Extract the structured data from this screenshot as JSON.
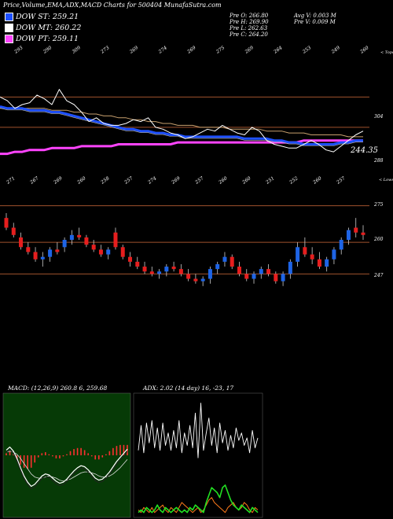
{
  "title": "Price,Volume,EMA,ADX,MACD Charts for 500404 MunafaSutra.com",
  "legend": [
    {
      "label": "DOW ST: 259.21",
      "color": "#1e50ff"
    },
    {
      "label": "DOW MT: 260.22",
      "color": "#ffffff"
    },
    {
      "label": "DOW PT: 259.11",
      "color": "#ff44ff"
    }
  ],
  "info": {
    "prev_open": "Pre  O: 266.80",
    "prev_high": "Pre  H: 269.90",
    "prev_low": "Pre  L: 262.63",
    "prev_close": "Pre  C: 264.20",
    "avg_vol": "Avg V: 0.003 M",
    "prev_vol": "Pre  V: 0.009 M"
  },
  "colors": {
    "up": "#1e64e6",
    "down": "#e61e1e",
    "brown": "#a0522d",
    "bg": "#000000"
  },
  "chart_data": [
    {
      "type": "line",
      "name": "price-ema-panel",
      "top_labels": [
        "293",
        "290",
        "309",
        "273",
        "269",
        "274",
        "269",
        "275",
        "269",
        "264",
        "253",
        "249",
        "260"
      ],
      "bottom_labels": [
        "244.35"
      ],
      "right_labels": [
        "< Tops",
        "304",
        "288"
      ],
      "series": [
        {
          "name": "price",
          "values": [
            304,
            302,
            298,
            300,
            301,
            305,
            303,
            300,
            308,
            302,
            300,
            296,
            291,
            293,
            290,
            289,
            289,
            290,
            292,
            291,
            293,
            288,
            287,
            285,
            284,
            282,
            283,
            285,
            287,
            286,
            289,
            287,
            285,
            284,
            288,
            286,
            281,
            279,
            278,
            277,
            277,
            279,
            281,
            279,
            276,
            275,
            278,
            281,
            284,
            286
          ]
        },
        {
          "name": "ema-short",
          "values": [
            299,
            298,
            298,
            298,
            297,
            297,
            297,
            296,
            296,
            295,
            294,
            293,
            292,
            291,
            290,
            289,
            288,
            287,
            287,
            286,
            286,
            285,
            285,
            284,
            284,
            283,
            283,
            283,
            283,
            283,
            283,
            283,
            283,
            282,
            282,
            282,
            282,
            281,
            281,
            280,
            280,
            279,
            279,
            279,
            279,
            279,
            280,
            280,
            281,
            281
          ]
        },
        {
          "name": "ema-mid",
          "values": [
            298,
            298,
            298,
            298,
            298,
            298,
            298,
            297,
            297,
            297,
            296,
            296,
            295,
            295,
            294,
            294,
            293,
            293,
            292,
            292,
            291,
            291,
            290,
            290,
            289,
            289,
            289,
            288,
            288,
            288,
            288,
            287,
            287,
            287,
            287,
            287,
            286,
            286,
            286,
            285,
            285,
            285,
            284,
            284,
            284,
            284,
            284,
            283,
            283,
            283
          ]
        },
        {
          "name": "ema-long",
          "values": [
            274,
            274,
            275,
            275,
            276,
            276,
            276,
            277,
            277,
            277,
            277,
            278,
            278,
            278,
            278,
            278,
            279,
            279,
            279,
            279,
            279,
            279,
            279,
            279,
            280,
            280,
            280,
            280,
            280,
            280,
            280,
            280,
            280,
            280,
            280,
            280,
            280,
            280,
            280,
            280,
            280,
            281,
            281,
            281,
            281,
            281,
            281,
            281,
            281,
            281
          ]
        }
      ]
    },
    {
      "type": "candlestick",
      "name": "candles-panel",
      "top_labels": [
        "271",
        "267",
        "269",
        "260",
        "258",
        "257",
        "274",
        "269",
        "257",
        "260",
        "260",
        "251",
        "252",
        "260",
        "257"
      ],
      "right_labels": [
        "< Lows",
        "275",
        "260",
        "247"
      ],
      "candles": [
        [
          270,
          272,
          265,
          266
        ],
        [
          266,
          268,
          262,
          263
        ],
        [
          262,
          264,
          257,
          258
        ],
        [
          258,
          260,
          255,
          256
        ],
        [
          256,
          258,
          252,
          253
        ],
        [
          253,
          256,
          250,
          254
        ],
        [
          254,
          258,
          252,
          257
        ],
        [
          257,
          260,
          255,
          256
        ],
        [
          258,
          262,
          256,
          261
        ],
        [
          261,
          265,
          259,
          263
        ],
        [
          263,
          266,
          261,
          262
        ],
        [
          262,
          263,
          258,
          259
        ],
        [
          259,
          261,
          256,
          257
        ],
        [
          257,
          259,
          254,
          255
        ],
        [
          255,
          258,
          253,
          257
        ],
        [
          264,
          266,
          257,
          258
        ],
        [
          258,
          259,
          253,
          254
        ],
        [
          254,
          256,
          250,
          252
        ],
        [
          252,
          254,
          249,
          250
        ],
        [
          250,
          252,
          247,
          248
        ],
        [
          248,
          250,
          246,
          247
        ],
        [
          247,
          249,
          245,
          248
        ],
        [
          248,
          251,
          246,
          250
        ],
        [
          250,
          252,
          248,
          249
        ],
        [
          249,
          251,
          246,
          247
        ],
        [
          247,
          249,
          244,
          245
        ],
        [
          245,
          247,
          243,
          244
        ],
        [
          244,
          246,
          242,
          245
        ],
        [
          245,
          250,
          243,
          249
        ],
        [
          249,
          252,
          247,
          251
        ],
        [
          252,
          256,
          250,
          254
        ],
        [
          254,
          255,
          249,
          250
        ],
        [
          250,
          252,
          246,
          247
        ],
        [
          247,
          249,
          244,
          245
        ],
        [
          245,
          248,
          243,
          247
        ],
        [
          247,
          250,
          245,
          249
        ],
        [
          249,
          251,
          246,
          247
        ],
        [
          247,
          248,
          243,
          244
        ],
        [
          244,
          248,
          242,
          247
        ],
        [
          247,
          253,
          245,
          252
        ],
        [
          252,
          260,
          250,
          258
        ],
        [
          258,
          262,
          254,
          255
        ],
        [
          255,
          258,
          251,
          253
        ],
        [
          253,
          256,
          249,
          250
        ],
        [
          250,
          254,
          248,
          253
        ],
        [
          253,
          258,
          251,
          257
        ],
        [
          257,
          262,
          255,
          261
        ],
        [
          261,
          266,
          259,
          265
        ],
        [
          266,
          270,
          262,
          264
        ],
        [
          264,
          267,
          261,
          263
        ]
      ]
    },
    {
      "type": "line",
      "name": "macd-panel",
      "header": "MACD: (12,26,9) 260.8    6, 259.68",
      "series": [
        {
          "name": "macd",
          "values": [
            0.5,
            0.8,
            0.4,
            -0.3,
            -1.2,
            -2.0,
            -2.6,
            -3.0,
            -2.8,
            -2.4,
            -2.0,
            -1.8,
            -1.9,
            -2.2,
            -2.5,
            -2.7,
            -2.6,
            -2.3,
            -1.9,
            -1.5,
            -1.2,
            -1.0,
            -1.1,
            -1.4,
            -1.8,
            -2.2,
            -2.4,
            -2.3,
            -2.0,
            -1.6,
            -1.1,
            -0.6,
            -0.2,
            0.2,
            0.6
          ]
        },
        {
          "name": "signal",
          "values": [
            0.3,
            0.4,
            0.3,
            0.1,
            -0.3,
            -0.8,
            -1.3,
            -1.8,
            -2.1,
            -2.2,
            -2.2,
            -2.1,
            -2.0,
            -2.1,
            -2.2,
            -2.4,
            -2.5,
            -2.4,
            -2.3,
            -2.1,
            -1.9,
            -1.7,
            -1.6,
            -1.6,
            -1.7,
            -1.8,
            -2.0,
            -2.1,
            -2.1,
            -2.0,
            -1.8,
            -1.5,
            -1.2,
            -0.8,
            -0.4
          ]
        }
      ]
    },
    {
      "type": "line",
      "name": "adx-panel",
      "header": "ADX: 2.02    (14 day) 16, -23, 17",
      "series": [
        {
          "name": "adx",
          "values": [
            15,
            25,
            14,
            26,
            18,
            27,
            16,
            24,
            15,
            26,
            17,
            22,
            15,
            23,
            16,
            27,
            14,
            22,
            17,
            25,
            16,
            30,
            12,
            34,
            15,
            22,
            28,
            17,
            24,
            14,
            26,
            18,
            23,
            15,
            21,
            16,
            24,
            19,
            22,
            17,
            20,
            14,
            23,
            16,
            20
          ]
        },
        {
          "name": "di-plus",
          "values": [
            2,
            3,
            2,
            4,
            3,
            2,
            3,
            5,
            3,
            2,
            4,
            3,
            2,
            3,
            4,
            3,
            2,
            3,
            2,
            4,
            3,
            5,
            4,
            3,
            2,
            6,
            9,
            12,
            11,
            10,
            8,
            12,
            13,
            10,
            7,
            5,
            4,
            3,
            5,
            4,
            3,
            2,
            4,
            3,
            2
          ]
        },
        {
          "name": "di-minus",
          "values": [
            3,
            2,
            4,
            3,
            2,
            4,
            2,
            3,
            4,
            5,
            3,
            2,
            4,
            3,
            2,
            4,
            6,
            5,
            4,
            3,
            2,
            3,
            4,
            2,
            3,
            5,
            7,
            8,
            6,
            5,
            4,
            3,
            2,
            4,
            5,
            6,
            4,
            3,
            4,
            6,
            5,
            3,
            2,
            4,
            3
          ]
        }
      ]
    }
  ]
}
